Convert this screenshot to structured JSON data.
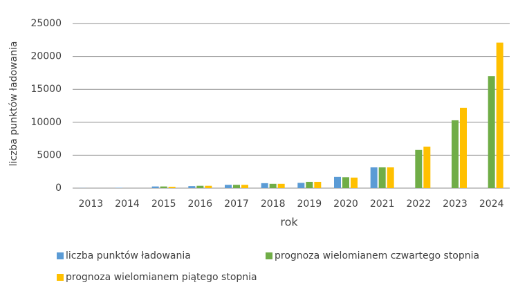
{
  "chart_data": {
    "type": "bar",
    "y_label": "liczba punktów ładowania",
    "x_label": "rok",
    "categories": [
      "2013",
      "2014",
      "2015",
      "2016",
      "2017",
      "2018",
      "2019",
      "2020",
      "2021",
      "2022",
      "2023",
      "2024"
    ],
    "series": [
      {
        "name": "liczba punktów ładowania",
        "color": "#5b9bd5",
        "values": [
          20,
          50,
          250,
          300,
          500,
          750,
          800,
          1700,
          3150,
          null,
          null,
          null
        ]
      },
      {
        "name": "prognoza wielomianem czwartego stopnia",
        "color": "#70ad47",
        "values": [
          0,
          0,
          250,
          350,
          500,
          650,
          950,
          1650,
          3150,
          5800,
          10300,
          17000
        ]
      },
      {
        "name": "prognoza wielomianem piątego stopnia",
        "color": "#ffc000",
        "values": [
          0,
          0,
          200,
          350,
          500,
          650,
          950,
          1600,
          3150,
          6300,
          12200,
          22100
        ]
      }
    ],
    "ylim": [
      0,
      25000
    ],
    "yticks": [
      0,
      5000,
      10000,
      15000,
      20000,
      25000
    ],
    "grid": true
  }
}
